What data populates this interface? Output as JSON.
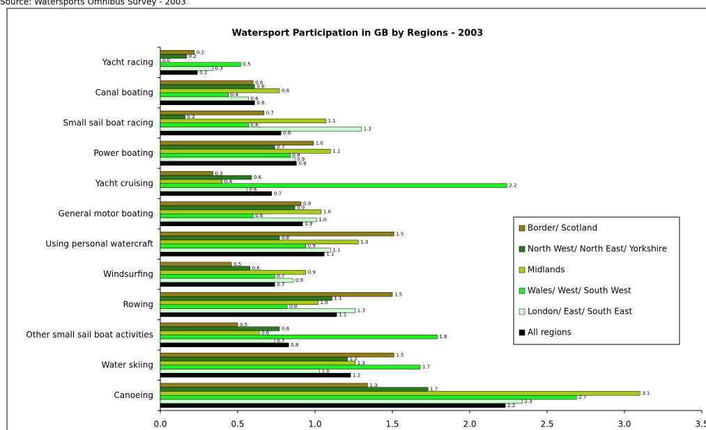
{
  "source": "Source: Watersports Omnibus Survey - 2003",
  "chart_data": {
    "type": "barh",
    "title": "Watersport Participation in GB by Regions - 2003",
    "categories": [
      "Yacht racing",
      "Canal boating",
      "Small sail boat racing",
      "Power boating",
      "Yacht cruising",
      "General motor boating",
      "Using personal watercraft",
      "Windsurfing",
      "Rowing",
      "Other small sail boat activities",
      "Water skiing",
      "Canoeing"
    ],
    "series": [
      {
        "name": "Border/ Scotland",
        "color": "#8c7f1c",
        "values": [
          0.22,
          0.6,
          0.67,
          0.99,
          0.34,
          0.91,
          1.51,
          0.46,
          1.5,
          0.5,
          1.51,
          1.34
        ],
        "value_labels": [
          "0.2",
          "0.6",
          "0.7",
          "1.0",
          "0.3",
          "0.9",
          "1.5",
          "0.5",
          "1.5",
          "0.5",
          "1.5",
          "1.3"
        ]
      },
      {
        "name": "North West/ North East/ Yorkshire",
        "color": "#2d7a1e",
        "values": [
          0.17,
          0.61,
          0.16,
          0.74,
          0.59,
          0.87,
          0.77,
          0.58,
          1.11,
          0.77,
          1.21,
          1.73
        ],
        "value_labels": [
          "0.2",
          "0.6",
          "0.2",
          "0.7",
          "0.6",
          "0.9",
          "0.8",
          "0.6",
          "1.1",
          "0.8",
          "1.2",
          "1.7"
        ]
      },
      {
        "name": "Midlands",
        "color": "#a6cc1a",
        "values": [
          0.0,
          0.77,
          1.07,
          1.1,
          0.4,
          1.04,
          1.28,
          0.94,
          1.02,
          0.64,
          1.26,
          3.1
        ],
        "value_labels": [
          "0.0",
          "0.8",
          "1.1",
          "1.1",
          "0.4",
          "1.0",
          "1.3",
          "0.9",
          "1.0",
          "0.6",
          "1.3",
          "3.1"
        ]
      },
      {
        "name": "Wales/ West/ South West",
        "color": "#22ee22",
        "values": [
          0.52,
          0.44,
          0.57,
          0.84,
          2.24,
          0.6,
          0.94,
          0.74,
          0.82,
          1.79,
          1.68,
          2.69
        ],
        "value_labels": [
          "0.5",
          "0.4",
          "0.6",
          "0.8",
          "2.2",
          "0.6",
          "0.9",
          "0.7",
          "0.8",
          "1.8",
          "1.7",
          "2.7"
        ]
      },
      {
        "name": "London/ East/ South East",
        "color": "#ccffcc",
        "values": [
          0.34,
          0.57,
          1.3,
          0.87,
          0.56,
          1.01,
          1.1,
          0.86,
          1.26,
          0.74,
          1.03,
          2.34
        ],
        "value_labels": [
          "0.3",
          "0.6",
          "1.3",
          "0.9",
          "0.6",
          "1.0",
          "1.1",
          "0.9",
          "1.3",
          "0.7",
          "1.0",
          "2.3"
        ]
      },
      {
        "name": "All regions",
        "color": "#000000",
        "values": [
          0.24,
          0.61,
          0.78,
          0.88,
          0.72,
          0.92,
          1.06,
          0.74,
          1.14,
          0.83,
          1.23,
          2.23
        ],
        "value_labels": [
          "0.2",
          "0.6",
          "0.8",
          "0.9",
          "0.7",
          "0.9",
          "1.1",
          "0.7",
          "1.1",
          "0.8",
          "1.2",
          "2.2"
        ]
      }
    ],
    "xlim": [
      0,
      3.5
    ],
    "xticks": [
      {
        "value": 0,
        "label": "0.0"
      },
      {
        "value": 0.5,
        "label": "0.5"
      },
      {
        "value": 1,
        "label": "1.0"
      },
      {
        "value": 1.5,
        "label": "1.5"
      },
      {
        "value": 2,
        "label": "2.0"
      },
      {
        "value": 2.5,
        "label": "2.5"
      },
      {
        "value": 3,
        "label": "3.0"
      },
      {
        "value": 3.5,
        "label": "3.5"
      }
    ],
    "legend": "right"
  }
}
